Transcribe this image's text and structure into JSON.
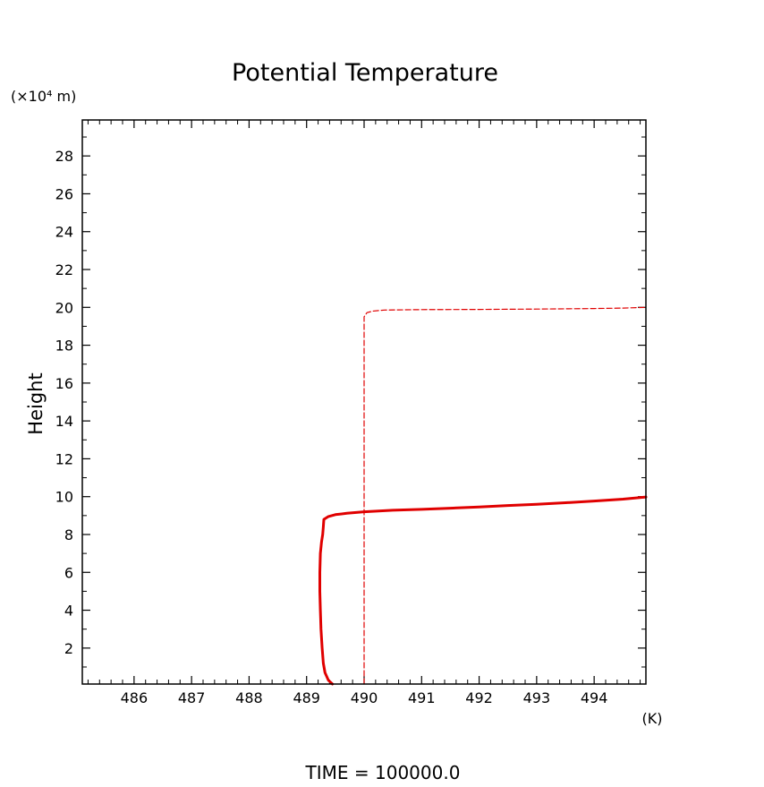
{
  "chart_data": {
    "type": "line",
    "title": "Potential Temperature",
    "ylabel": "Height",
    "yunit_label": "(×10⁴ m)",
    "xunit_label": "(K)",
    "footer": "TIME  =  100000.0",
    "xlim": [
      485.1,
      494.9
    ],
    "ylim": [
      0.1,
      29.9
    ],
    "xticks": [
      486,
      487,
      488,
      489,
      490,
      491,
      492,
      493,
      494
    ],
    "yticks": [
      2,
      4,
      6,
      8,
      10,
      12,
      14,
      16,
      18,
      20,
      22,
      24,
      26,
      28
    ],
    "grid": false,
    "series": [
      {
        "style": "solid",
        "color": "#e00000",
        "x": [
          489.45,
          489.38,
          489.32,
          489.29,
          489.27,
          489.25,
          489.24,
          489.23,
          489.23,
          489.24,
          489.26,
          489.28,
          489.29,
          489.3,
          489.38,
          489.5,
          489.7,
          490.0,
          490.5,
          491.0,
          491.5,
          492.0,
          492.5,
          493.0,
          493.5,
          494.0,
          494.5,
          494.9
        ],
        "y": [
          0.1,
          0.3,
          0.7,
          1.2,
          2.0,
          3.0,
          4.0,
          5.0,
          6.0,
          7.0,
          7.6,
          8.0,
          8.4,
          8.8,
          8.95,
          9.05,
          9.12,
          9.2,
          9.28,
          9.33,
          9.39,
          9.45,
          9.53,
          9.6,
          9.68,
          9.77,
          9.87,
          9.98
        ]
      },
      {
        "style": "dashed",
        "color": "#e00000",
        "x": [
          490.0,
          490.0,
          490.0,
          490.0,
          490.05,
          490.15,
          490.35,
          491.0,
          492.0,
          493.0,
          494.0,
          494.5,
          494.9
        ],
        "y": [
          0.1,
          5.0,
          12.0,
          19.5,
          19.72,
          19.8,
          19.86,
          19.88,
          19.89,
          19.91,
          19.94,
          19.96,
          20.0
        ]
      }
    ]
  }
}
